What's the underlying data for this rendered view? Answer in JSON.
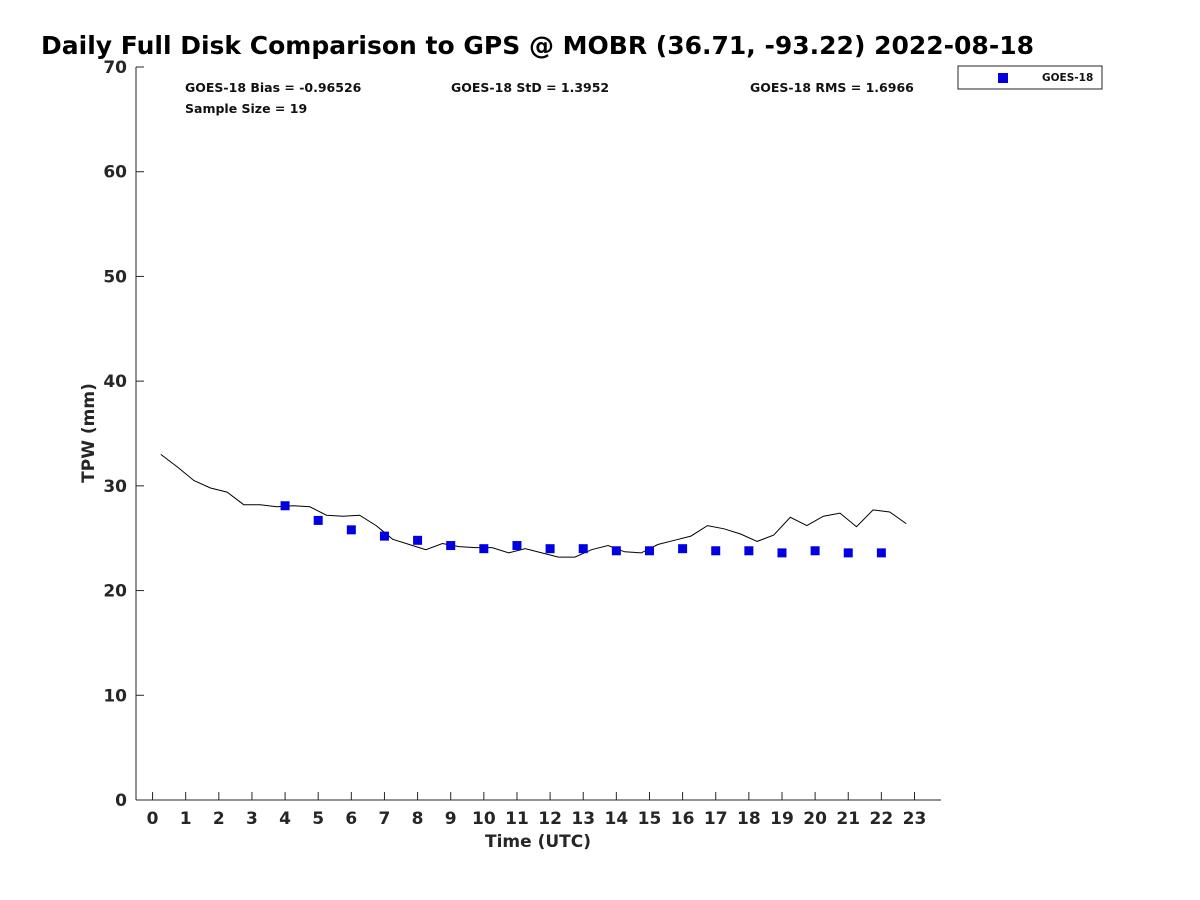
{
  "chart_data": {
    "type": "scatter",
    "title": "Daily Full Disk Comparison to GPS @ MOBR (36.71, -93.22) 2022-08-18",
    "xlabel": "Time (UTC)",
    "ylabel": "TPW (mm)",
    "xlim": [
      -0.5,
      23.8
    ],
    "ylim": [
      0,
      70
    ],
    "xticks": [
      0,
      1,
      2,
      3,
      4,
      5,
      6,
      7,
      8,
      9,
      10,
      11,
      12,
      13,
      14,
      15,
      16,
      17,
      18,
      19,
      20,
      21,
      22,
      23
    ],
    "yticks": [
      0,
      10,
      20,
      30,
      40,
      50,
      60,
      70
    ],
    "grid": false,
    "legend_position": "top-right (outside)",
    "stats": {
      "bias": "GOES-18 Bias = -0.96526",
      "std": "GOES-18 StD = 1.3952",
      "rms": "GOES-18 RMS = 1.6966",
      "sample": "Sample Size = 19"
    },
    "series": [
      {
        "name": "GPS",
        "kind": "line",
        "color": "#000000",
        "x": [
          0.25,
          0.75,
          1.25,
          1.75,
          2.25,
          2.75,
          3.25,
          3.75,
          4.25,
          4.75,
          5.25,
          5.75,
          6.25,
          6.75,
          7.25,
          7.75,
          8.25,
          8.75,
          9.25,
          9.75,
          10.25,
          10.75,
          11.25,
          11.75,
          12.25,
          12.75,
          13.25,
          13.75,
          14.25,
          14.75,
          15.25,
          15.75,
          16.25,
          16.75,
          17.25,
          17.75,
          18.25,
          18.75,
          19.25,
          19.75,
          20.25,
          20.75,
          21.25,
          21.75,
          22.25,
          22.75
        ],
        "y": [
          33.0,
          31.8,
          30.5,
          29.8,
          29.4,
          28.2,
          28.2,
          28.0,
          28.1,
          28.0,
          27.2,
          27.1,
          27.2,
          26.2,
          24.9,
          24.4,
          23.9,
          24.5,
          24.2,
          24.1,
          24.1,
          23.6,
          24.0,
          23.6,
          23.2,
          23.2,
          23.9,
          24.3,
          23.7,
          23.6,
          24.4,
          24.8,
          25.2,
          26.2,
          25.9,
          25.4,
          24.7,
          25.3,
          27.0,
          26.2,
          27.1,
          27.4,
          26.1,
          27.7,
          27.5,
          26.4
        ]
      },
      {
        "name": "GOES-18",
        "kind": "scatter",
        "marker": "square",
        "color": "#0000e0",
        "x": [
          4,
          5,
          6,
          7,
          8,
          9,
          10,
          11,
          12,
          13,
          14,
          15,
          16,
          17,
          18,
          19,
          20,
          21,
          22
        ],
        "y": [
          28.1,
          26.7,
          25.8,
          25.2,
          24.8,
          24.3,
          24.0,
          24.3,
          24.0,
          24.0,
          23.8,
          23.8,
          24.0,
          23.8,
          23.8,
          23.6,
          23.8,
          23.6,
          23.6
        ]
      }
    ],
    "legend": [
      "GOES-18"
    ]
  }
}
